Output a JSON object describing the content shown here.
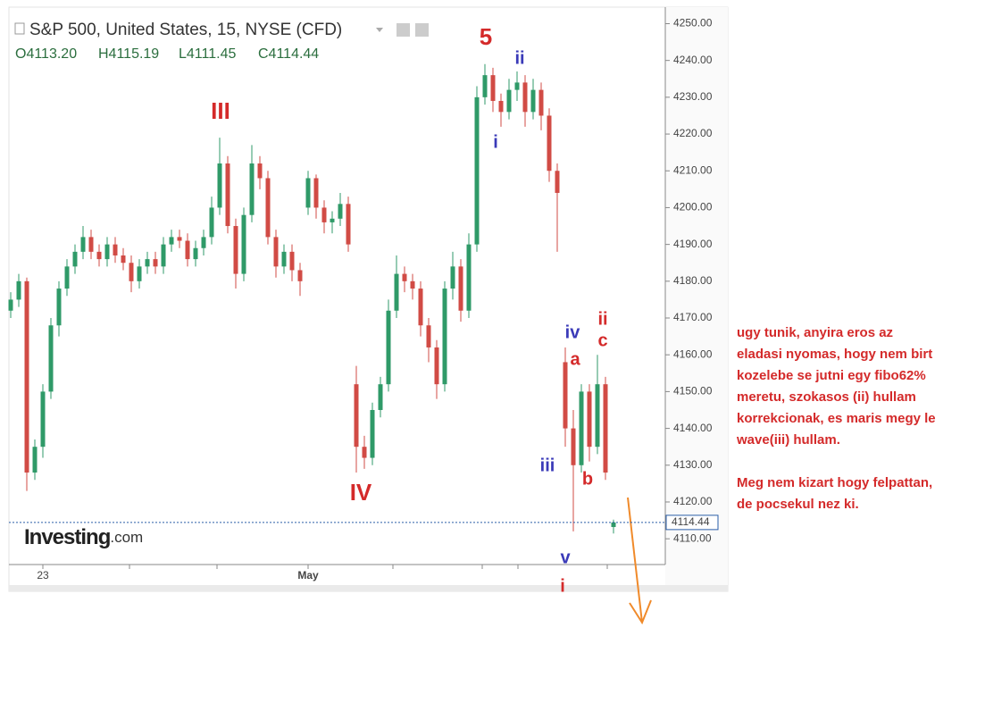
{
  "chart_data": {
    "type": "candlestick",
    "title": "S&P 500, United States, 15, NYSE (CFD)",
    "ohlc_readout": [
      "O4113.20",
      "H4115.19",
      "L4111.45",
      "C4114.44"
    ],
    "logo": [
      "Investing",
      ".com"
    ],
    "categories": [
      null,
      null,
      null,
      null,
      "23",
      null,
      null,
      null,
      null,
      null,
      null,
      null,
      null,
      null,
      null,
      null,
      null,
      null,
      null,
      null,
      null,
      null,
      null,
      null,
      null,
      null,
      null,
      null,
      null,
      null,
      null,
      null,
      null,
      null,
      null,
      null,
      null,
      "May",
      null,
      null,
      null,
      null,
      null,
      null,
      null,
      null,
      null,
      null,
      null,
      null,
      null,
      null,
      null,
      null,
      null,
      null,
      null,
      null,
      null,
      null,
      null,
      null,
      null,
      null,
      null,
      null,
      null,
      null,
      null,
      null,
      null,
      null,
      null,
      null,
      null,
      null
    ],
    "open": [
      4172,
      4175,
      4180,
      4128,
      4135,
      4150,
      4168,
      4178,
      4184,
      4188,
      4192,
      4188,
      4186,
      4190,
      4187,
      4185,
      4180,
      4184,
      4186,
      4184,
      4190,
      4192,
      4191,
      4186,
      4189,
      4192,
      4200,
      4212,
      4195,
      4182,
      4198,
      4212,
      4208,
      4192,
      4184,
      4188,
      4183,
      4200,
      4208,
      4200,
      4196,
      4197,
      4201,
      4152,
      4135,
      4132,
      4145,
      4152,
      4172,
      4182,
      4180,
      4178,
      4168,
      4162,
      4152,
      4178,
      4184,
      4172,
      4190,
      4230,
      4236,
      4229,
      4226,
      4232,
      4234,
      4226,
      4232,
      4225,
      4210,
      4158,
      4140,
      4130,
      4150,
      4135,
      4152,
      4113.2
    ],
    "high": [
      4177,
      4182,
      4181,
      4137,
      4152,
      4170,
      4180,
      4186,
      4190,
      4195,
      4194,
      4190,
      4192,
      4192,
      4189,
      4187,
      4186,
      4188,
      4188,
      4192,
      4194,
      4194,
      4193,
      4191,
      4194,
      4203,
      4219,
      4214,
      4197,
      4200,
      4217,
      4214,
      4210,
      4194,
      4190,
      4190,
      4185,
      4210,
      4209,
      4202,
      4199,
      4204,
      4203,
      4157,
      4138,
      4147,
      4154,
      4175,
      4187,
      4184,
      4182,
      4180,
      4170,
      4164,
      4180,
      4188,
      4186,
      4193,
      4233,
      4239,
      4238,
      4231,
      4235,
      4237,
      4236,
      4235,
      4234,
      4227,
      4212,
      4162,
      4145,
      4152,
      4152,
      4160,
      4154,
      4115.19
    ],
    "low": [
      4170,
      4173,
      4123,
      4126,
      4132,
      4148,
      4165,
      4176,
      4182,
      4186,
      4186,
      4184,
      4184,
      4185,
      4183,
      4177,
      4178,
      4182,
      4182,
      4182,
      4188,
      4189,
      4184,
      4184,
      4187,
      4190,
      4198,
      4193,
      4178,
      4180,
      4196,
      4205,
      4190,
      4181,
      4182,
      4180,
      4176,
      4198,
      4197,
      4193,
      4193,
      4195,
      4188,
      4128,
      4129,
      4130,
      4143,
      4150,
      4170,
      4177,
      4175,
      4165,
      4158,
      4148,
      4150,
      4175,
      4169,
      4170,
      4188,
      4228,
      4226,
      4222,
      4224,
      4229,
      4222,
      4224,
      4221,
      4207,
      4188,
      4135,
      4112,
      4128,
      4131,
      4133,
      4126,
      4111.45
    ],
    "close": [
      4175,
      4180,
      4128,
      4135,
      4150,
      4168,
      4178,
      4184,
      4188,
      4192,
      4188,
      4186,
      4190,
      4187,
      4185,
      4180,
      4184,
      4186,
      4184,
      4190,
      4192,
      4191,
      4186,
      4189,
      4192,
      4200,
      4212,
      4195,
      4182,
      4198,
      4212,
      4208,
      4192,
      4184,
      4188,
      4183,
      4180,
      4208,
      4200,
      4196,
      4197,
      4201,
      4190,
      4135,
      4132,
      4145,
      4152,
      4172,
      4182,
      4180,
      4178,
      4168,
      4162,
      4152,
      4178,
      4184,
      4172,
      4190,
      4230,
      4236,
      4229,
      4226,
      4232,
      4234,
      4226,
      4232,
      4225,
      4210,
      4204,
      4140,
      4130,
      4150,
      4135,
      4152,
      4128,
      4114.44
    ],
    "up_color": "#2f9a68",
    "down_color": "#d14b45",
    "last_price_color": "#2a5ea8",
    "ylim": [
      4103,
      4254
    ],
    "yticks": [
      {
        "value": 4110,
        "label": "4110.00"
      },
      {
        "value": 4120,
        "label": "4120.00"
      },
      {
        "value": 4130,
        "label": "4130.00"
      },
      {
        "value": 4140,
        "label": "4140.00"
      },
      {
        "value": 4150,
        "label": "4150.00"
      },
      {
        "value": 4160,
        "label": "4160.00"
      },
      {
        "value": 4170,
        "label": "4170.00"
      },
      {
        "value": 4180,
        "label": "4180.00"
      },
      {
        "value": 4190,
        "label": "4190.00"
      },
      {
        "value": 4200,
        "label": "4200.00"
      },
      {
        "value": 4210,
        "label": "4210.00"
      },
      {
        "value": 4220,
        "label": "4220.00"
      },
      {
        "value": 4230,
        "label": "4230.00"
      },
      {
        "value": 4240,
        "label": "4240.00"
      },
      {
        "value": 4250,
        "label": "4250.00"
      }
    ],
    "grid": false,
    "annotations": [
      {
        "text": "5",
        "color": "#d42a2a"
      },
      {
        "text": "III",
        "color": "#d42a2a"
      },
      {
        "text": "IV",
        "color": "#d42a2a"
      },
      {
        "text": "ii",
        "color": "#3a3ab8"
      },
      {
        "text": "i",
        "color": "#3a3ab8"
      },
      {
        "text": "iv",
        "color": "#3a3ab8"
      },
      {
        "text": "iii",
        "color": "#3a3ab8"
      },
      {
        "text": "v",
        "color": "#3a3ab8"
      },
      {
        "text": "ii",
        "color": "#d42a2a"
      },
      {
        "text": "c",
        "color": "#d42a2a"
      },
      {
        "text": "a",
        "color": "#d42a2a"
      },
      {
        "text": "b",
        "color": "#d42a2a"
      },
      {
        "text": "i",
        "color": "#d42a2a"
      }
    ],
    "comment": [
      [
        "ugy tunik, anyira eros az",
        "eladasi nyomas, hogy nem birt",
        "kozelebe se jutni egy fibo62%",
        "meretu, szokasos  (ii) hullam",
        "korrekcionak, es maris megy le",
        "wave(iii) hullam."
      ],
      [
        "Meg nem kizart hogy felpattan,",
        "de pocsekul nez ki."
      ]
    ]
  }
}
